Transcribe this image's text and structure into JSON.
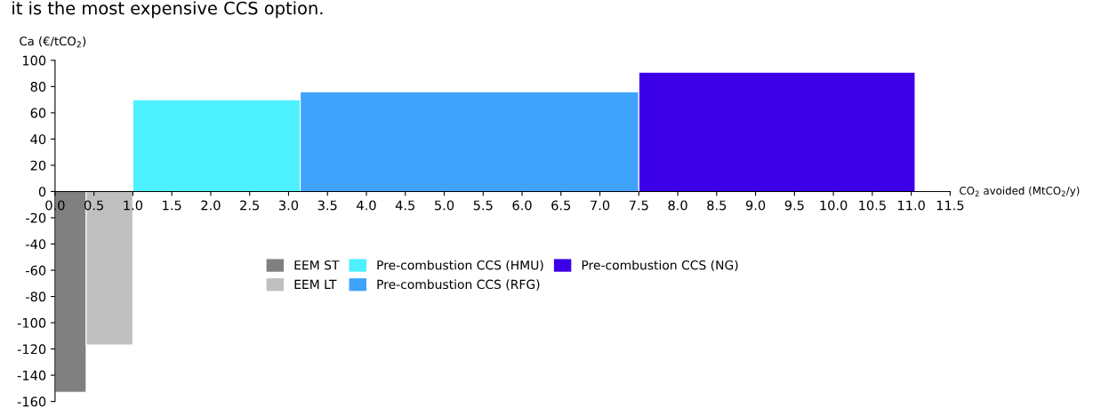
{
  "chart_data": {
    "type": "area",
    "title": "it is the most expensive CCS option.",
    "xlabel": "CO$_{2}$ avoided (MtCO$_{2}$/y)",
    "ylabel": "Ca (€/tCO$_{2}$)",
    "series": [
      {
        "name": "EEM ST",
        "color": "#808080",
        "x": [
          0.0,
          0.4
        ],
        "values": [
          -153,
          -153
        ]
      },
      {
        "name": "EEM LT",
        "color": "#bfbfbf",
        "x": [
          0.4,
          1.0
        ],
        "values": [
          -117,
          -117
        ]
      },
      {
        "name": "Pre-combustion CCS (HMU)",
        "color": "#4cf0ff",
        "x": [
          1.0,
          3.15
        ],
        "values": [
          70,
          70
        ]
      },
      {
        "name": "Pre-combustion CCS (RFG)",
        "color": "#3fa3fb",
        "x": [
          3.15,
          7.5
        ],
        "values": [
          76,
          76
        ]
      },
      {
        "name": "Pre-combustion CCS (NG)",
        "color": "#3b00e6",
        "x": [
          7.5,
          11.05
        ],
        "values": [
          91,
          91
        ]
      }
    ],
    "xlim": [
      0,
      11.5
    ],
    "xticks": [
      {
        "value": 0,
        "label": "0.0"
      },
      0.5,
      {
        "value": 1,
        "label": "1.0"
      },
      1.5,
      {
        "value": 2,
        "label": "2.0"
      },
      2.5,
      {
        "value": 3,
        "label": "3.0"
      },
      3.5,
      {
        "value": 4,
        "label": "4.0"
      },
      4.5,
      {
        "value": 5,
        "label": "5.0"
      },
      5.5,
      {
        "value": 6,
        "label": "6.0"
      },
      6.5,
      {
        "value": 7,
        "label": "7.0"
      },
      7.5,
      {
        "value": 8,
        "label": "8.0"
      },
      8.5,
      {
        "value": 9,
        "label": "9.0"
      },
      9.5,
      {
        "value": 10,
        "label": "10.0"
      },
      10.5,
      {
        "value": 11,
        "label": "11.0"
      },
      11.5
    ],
    "ylim": [
      -160,
      100
    ],
    "yticks": [
      -160,
      -140,
      -120,
      -100,
      -80,
      -60,
      -40,
      -20,
      0,
      20,
      40,
      60,
      80,
      100
    ],
    "legend": "center",
    "grid": false
  }
}
